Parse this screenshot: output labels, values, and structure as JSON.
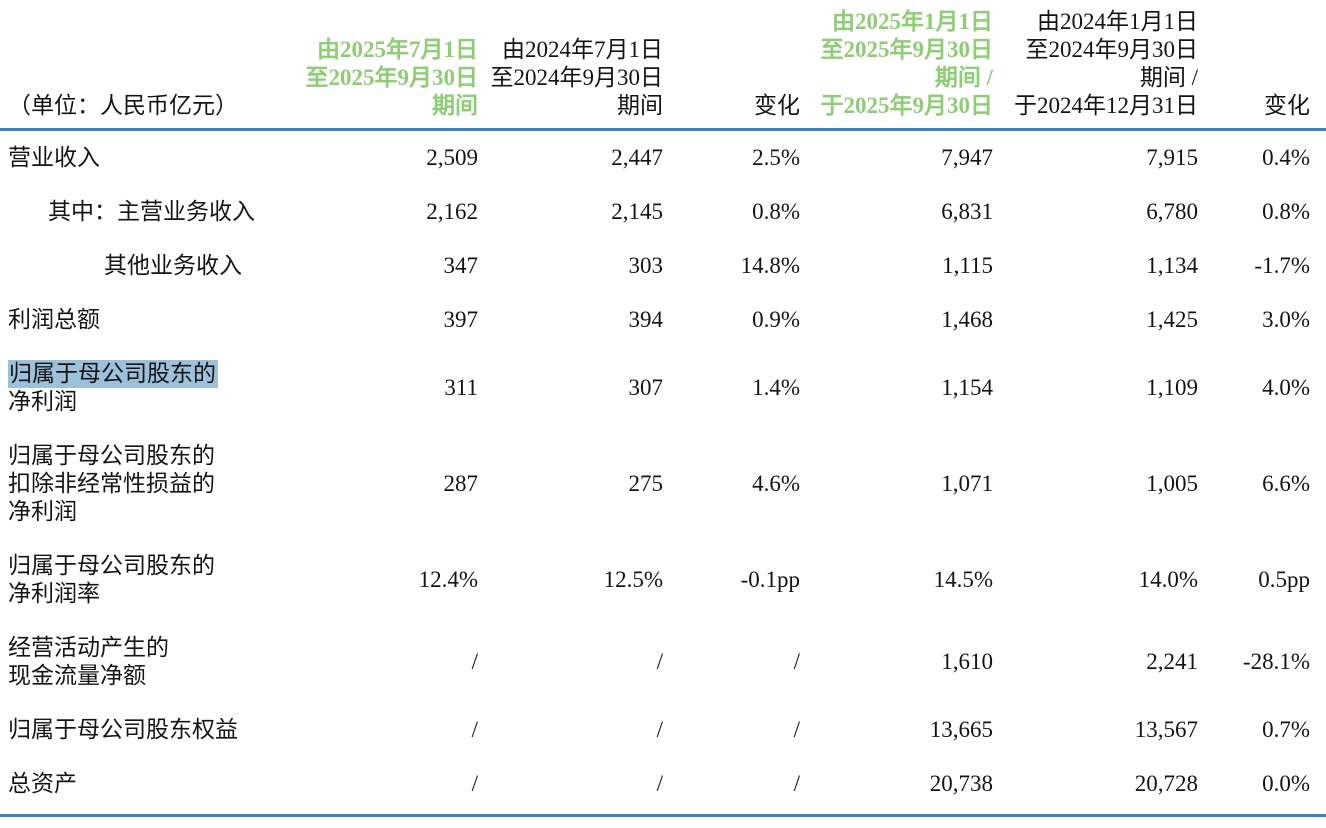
{
  "colors": {
    "accent_green": "#8dce74",
    "rule_blue": "#3a82c4",
    "selection_blue": "#9dc1db"
  },
  "header": {
    "unit_label": "（单位：人民币亿元）",
    "q3_2025_lines": [
      "由2025年7月1日",
      "至2025年9月30日",
      "期间"
    ],
    "q3_2024_lines": [
      "由2024年7月1日",
      "至2024年9月30日",
      "期间"
    ],
    "change_qoq": "变化",
    "ytd_2025_lines": [
      "由2025年1月1日",
      "至2025年9月30日",
      "期间 /",
      "于2025年9月30日"
    ],
    "ytd_2024_lines": [
      "由2024年1月1日",
      "至2024年9月30日",
      "期间 /",
      "于2024年12月31日"
    ],
    "change_yoy": "变化"
  },
  "rows": [
    {
      "label_lines": [
        "营业收入"
      ],
      "q3_2025": "2,509",
      "q3_2024": "2,447",
      "change_1": "2.5%",
      "ytd_2025": "7,947",
      "ytd_2024": "7,915",
      "change_2": "0.4%"
    },
    {
      "label_lines": [
        "其中：主营业务收入"
      ],
      "q3_2025": "2,162",
      "q3_2024": "2,145",
      "change_1": "0.8%",
      "ytd_2025": "6,831",
      "ytd_2024": "6,780",
      "change_2": "0.8%"
    },
    {
      "label_lines": [
        "其他业务收入"
      ],
      "q3_2025": "347",
      "q3_2024": "303",
      "change_1": "14.8%",
      "ytd_2025": "1,115",
      "ytd_2024": "1,134",
      "change_2": "-1.7%"
    },
    {
      "label_lines": [
        "利润总额"
      ],
      "q3_2025": "397",
      "q3_2024": "394",
      "change_1": "0.9%",
      "ytd_2025": "1,468",
      "ytd_2024": "1,425",
      "change_2": "3.0%"
    },
    {
      "label_lines": [
        "归属于母公司股东的",
        "净利润"
      ],
      "q3_2025": "311",
      "q3_2024": "307",
      "change_1": "1.4%",
      "ytd_2025": "1,154",
      "ytd_2024": "1,109",
      "change_2": "4.0%"
    },
    {
      "label_lines": [
        "归属于母公司股东的",
        "扣除非经常性损益的",
        "净利润"
      ],
      "q3_2025": "287",
      "q3_2024": "275",
      "change_1": "4.6%",
      "ytd_2025": "1,071",
      "ytd_2024": "1,005",
      "change_2": "6.6%"
    },
    {
      "label_lines": [
        "归属于母公司股东的",
        "净利润率"
      ],
      "q3_2025": "12.4%",
      "q3_2024": "12.5%",
      "change_1": "-0.1pp",
      "ytd_2025": "14.5%",
      "ytd_2024": "14.0%",
      "change_2": "0.5pp"
    },
    {
      "label_lines": [
        "经营活动产生的",
        "现金流量净额"
      ],
      "q3_2025": "/",
      "q3_2024": "/",
      "change_1": "/",
      "ytd_2025": "1,610",
      "ytd_2024": "2,241",
      "change_2": "-28.1%"
    },
    {
      "label_lines": [
        "归属于母公司股东权益"
      ],
      "q3_2025": "/",
      "q3_2024": "/",
      "change_1": "/",
      "ytd_2025": "13,665",
      "ytd_2024": "13,567",
      "change_2": "0.7%"
    },
    {
      "label_lines": [
        "总资产"
      ],
      "q3_2025": "/",
      "q3_2024": "/",
      "change_1": "/",
      "ytd_2025": "20,738",
      "ytd_2024": "20,728",
      "change_2": "0.0%"
    }
  ]
}
